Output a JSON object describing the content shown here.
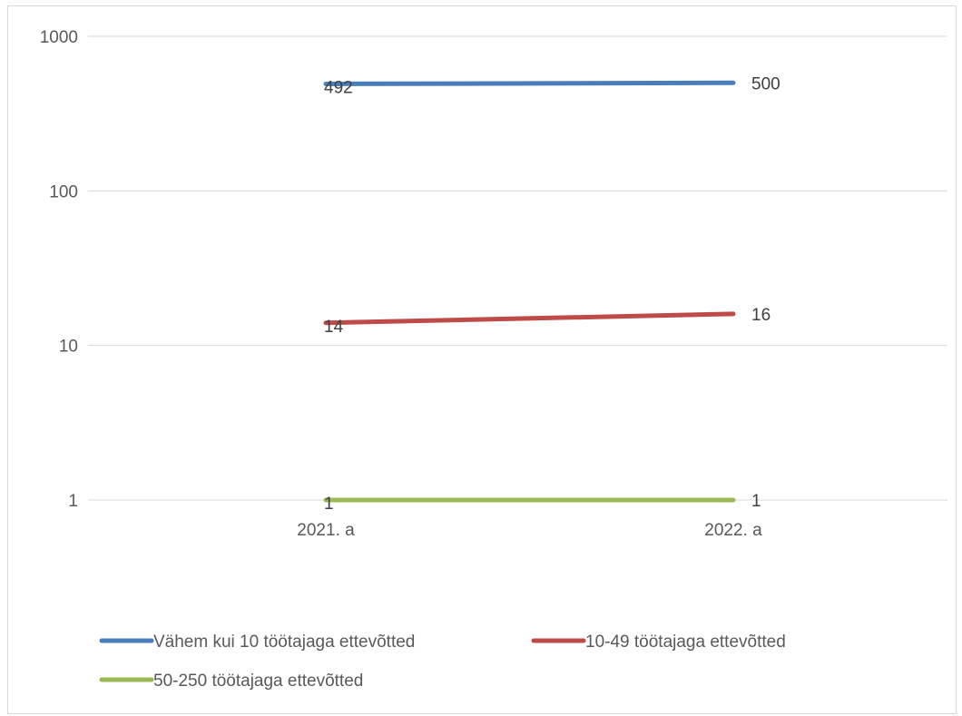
{
  "chart_data": {
    "type": "line",
    "title": "",
    "xlabel": "",
    "ylabel": "",
    "y_scale": "log",
    "ylim": [
      1,
      1000
    ],
    "y_ticks": [
      "1",
      "10",
      "100",
      "1000"
    ],
    "categories": [
      "2021. a",
      "2022. a"
    ],
    "grid": true,
    "legend_position": "bottom",
    "series": [
      {
        "name": "Vähem kui 10 töötajaga ettevõtted",
        "values": [
          492,
          500
        ],
        "labels": [
          "492",
          "500"
        ],
        "color": "#4a7ebb"
      },
      {
        "name": "10-49 töötajaga ettevõtted",
        "values": [
          14,
          16
        ],
        "labels": [
          "14",
          "16"
        ],
        "color": "#be4b48"
      },
      {
        "name": "50-250 töötajaga ettevõtted",
        "values": [
          1,
          1
        ],
        "labels": [
          "1",
          "1"
        ],
        "color": "#98b954"
      }
    ]
  }
}
